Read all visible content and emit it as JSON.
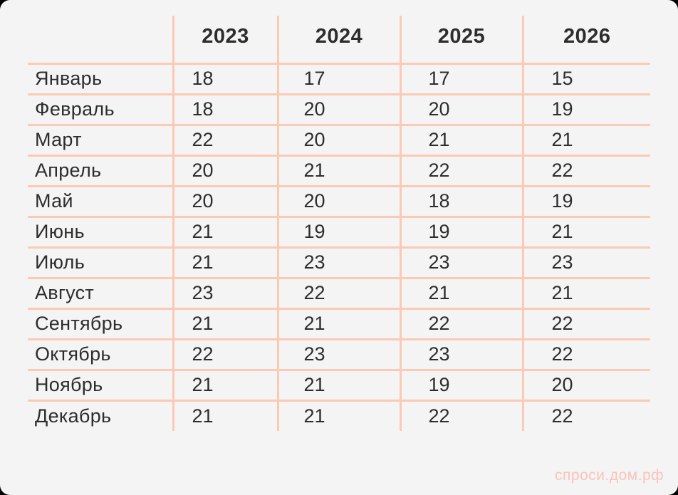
{
  "colors": {
    "outside": "#000000",
    "surface": "#f5f4f5",
    "line": "#fbc9b4",
    "text": "#2e2d2e",
    "watermark": "#f8c3ba"
  },
  "watermark": {
    "label": "спроси.дом.рф"
  },
  "chart_data": {
    "type": "table",
    "columns": [
      "2023",
      "2024",
      "2025",
      "2026"
    ],
    "rows": [
      {
        "label": "Январь",
        "values": [
          18,
          17,
          17,
          15
        ]
      },
      {
        "label": "Февраль",
        "values": [
          18,
          20,
          20,
          19
        ]
      },
      {
        "label": "Март",
        "values": [
          22,
          20,
          21,
          21
        ]
      },
      {
        "label": "Апрель",
        "values": [
          20,
          21,
          22,
          22
        ]
      },
      {
        "label": "Май",
        "values": [
          20,
          20,
          18,
          19
        ]
      },
      {
        "label": "Июнь",
        "values": [
          21,
          19,
          19,
          21
        ]
      },
      {
        "label": "Июль",
        "values": [
          21,
          23,
          23,
          23
        ]
      },
      {
        "label": "Август",
        "values": [
          23,
          22,
          21,
          21
        ]
      },
      {
        "label": "Сентябрь",
        "values": [
          21,
          21,
          22,
          22
        ]
      },
      {
        "label": "Октябрь",
        "values": [
          22,
          23,
          23,
          22
        ]
      },
      {
        "label": "Ноябрь",
        "values": [
          21,
          21,
          19,
          20
        ]
      },
      {
        "label": "Декабрь",
        "values": [
          21,
          21,
          22,
          22
        ]
      }
    ]
  }
}
